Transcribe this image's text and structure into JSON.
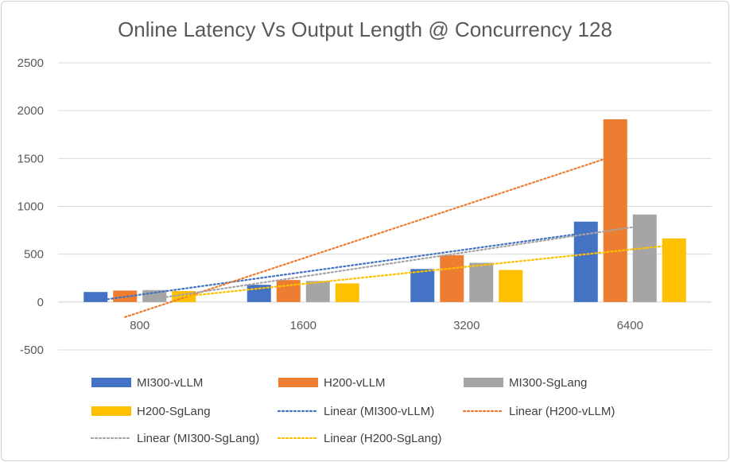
{
  "chart_data": {
    "type": "bar",
    "title": "Online Latency Vs Output Length @ Concurrency 128",
    "xlabel": "",
    "ylabel": "",
    "categories": [
      "800",
      "1600",
      "3200",
      "6400"
    ],
    "ylim": [
      -500,
      2500
    ],
    "yticks": [
      -500,
      0,
      500,
      1000,
      1500,
      2000,
      2500
    ],
    "grid": true,
    "legend_position": "bottom",
    "series": [
      {
        "name": "MI300-vLLM",
        "values": [
          105,
          180,
          345,
          840
        ],
        "color": "#4472C4"
      },
      {
        "name": "H200-vLLM",
        "values": [
          120,
          230,
          490,
          1910
        ],
        "color": "#ED7D31"
      },
      {
        "name": "MI300-SgLang",
        "values": [
          125,
          220,
          410,
          915
        ],
        "color": "#A5A5A5"
      },
      {
        "name": "H200-SgLang",
        "values": [
          115,
          195,
          335,
          665
        ],
        "color": "#FFC000"
      }
    ],
    "trendlines": [
      {
        "name": "Linear (MI300-vLLM)",
        "series": "MI300-vLLM",
        "color": "#4472C4"
      },
      {
        "name": "Linear (H200-vLLM)",
        "series": "H200-vLLM",
        "color": "#ED7D31"
      },
      {
        "name": "Linear (MI300-SgLang)",
        "series": "MI300-SgLang",
        "color": "#A5A5A5"
      },
      {
        "name": "Linear (H200-SgLang)",
        "series": "H200-SgLang",
        "color": "#FFC000"
      }
    ]
  }
}
